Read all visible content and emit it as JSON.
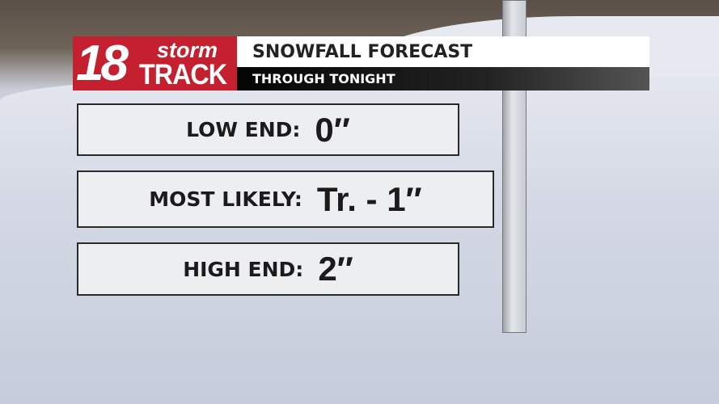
{
  "brand": {
    "number": "18",
    "line1": "storm",
    "line2": "TRACK",
    "color": "#c4202f"
  },
  "header": {
    "title": "SNOWFALL FORECAST",
    "subtitle": "THROUGH TONIGHT"
  },
  "forecast": [
    {
      "label": "LOW END:",
      "value": "0″"
    },
    {
      "label": "MOST LIKELY:",
      "value": "Tr. - 1″"
    },
    {
      "label": "HIGH END:",
      "value": "2″"
    }
  ]
}
